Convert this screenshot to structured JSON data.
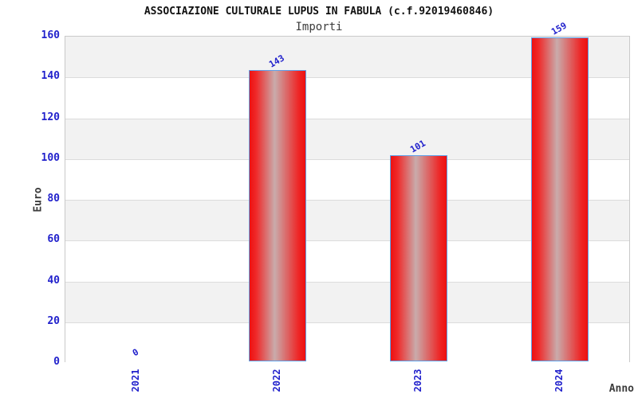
{
  "chart_data": {
    "type": "bar",
    "title": "ASSOCIAZIONE CULTURALE LUPUS IN FABULA (c.f.92019460846)",
    "subtitle": "Importi",
    "xlabel": "Anno",
    "ylabel": "Euro",
    "categories": [
      "2021",
      "2022",
      "2023",
      "2024"
    ],
    "values": [
      0,
      143,
      101,
      159
    ],
    "value_labels": [
      "0",
      "143",
      "101",
      "159"
    ],
    "ylim": [
      0,
      160
    ],
    "ytick_step": 20,
    "yticks": [
      "0",
      "20",
      "40",
      "60",
      "80",
      "100",
      "120",
      "140",
      "160"
    ],
    "grid": "horizontal",
    "legend": "none",
    "background_bands": "alternating gray/white every 20 units, gray at top",
    "colors": {
      "bar_red": "#ed1111",
      "bar_gradient_mid": "#c9abab",
      "bar_border": "#5fa0e8",
      "tick_label_blue": "#2222cc",
      "axis_label_gray": "#3c3c3c",
      "title_black": "#111111",
      "band_gray": "#f2f2f2",
      "band_white": "#ffffff",
      "gridline_gray": "#dcdcdc",
      "plot_border_gray": "#c9c9c9"
    }
  }
}
